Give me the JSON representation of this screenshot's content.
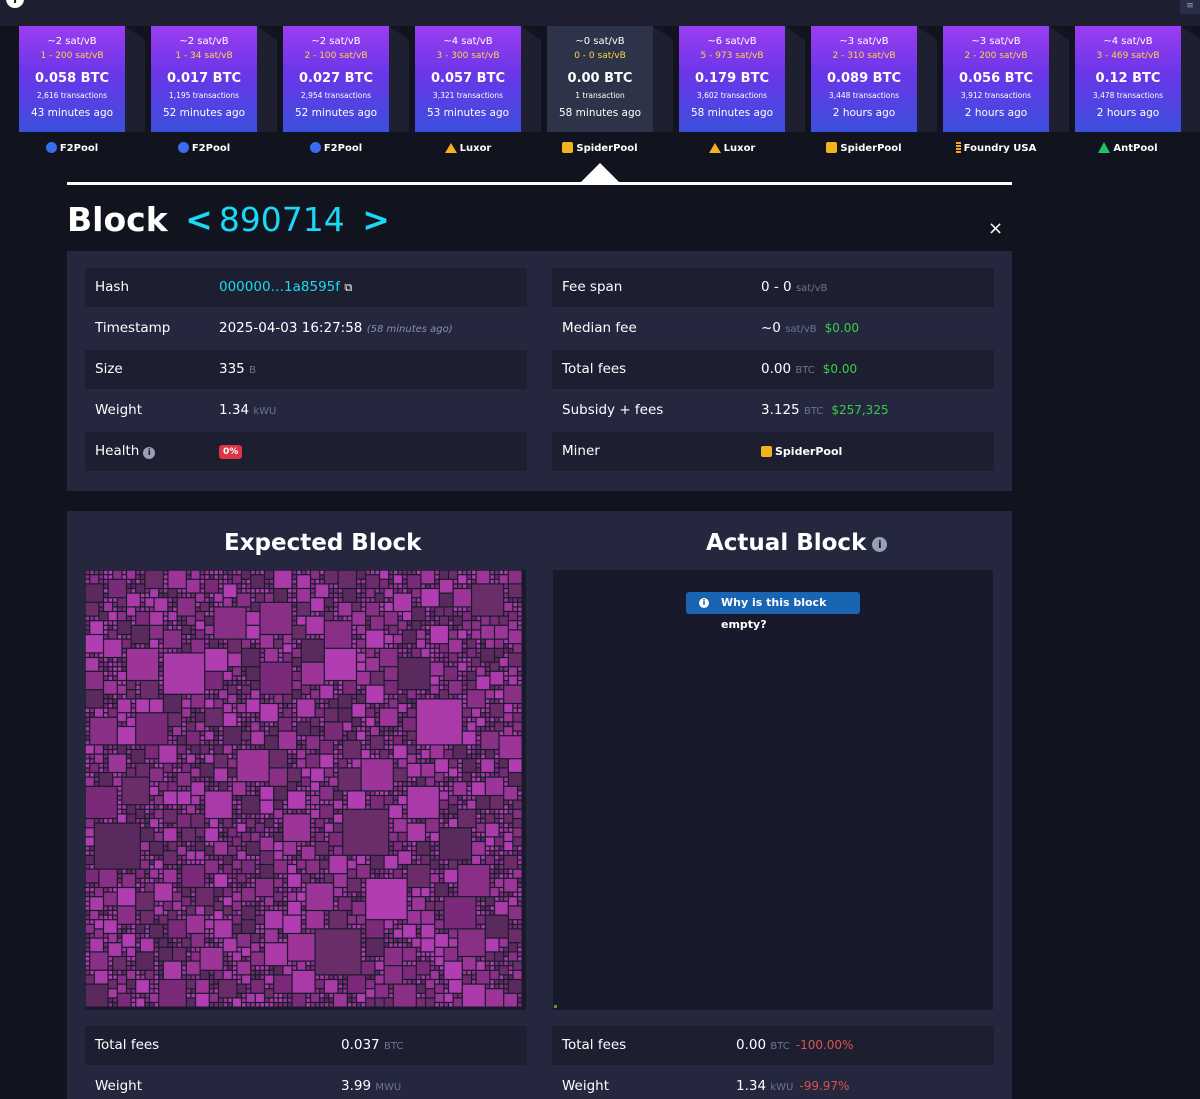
{
  "colors": {
    "accent": "#1bd8f4",
    "fee_green": "#3bcc49",
    "health_red": "#dc3545",
    "tx_magenta": "#a93aa8"
  },
  "blocks": [
    {
      "fee": "~2 sat/vB",
      "range": "1 - 200 sat/vB",
      "btc": "0.058 BTC",
      "tx": "2,616 transactions",
      "time": "43 minutes ago",
      "pool": "F2Pool",
      "pool_icon": "f2pool-icon"
    },
    {
      "fee": "~2 sat/vB",
      "range": "1 - 34 sat/vB",
      "btc": "0.017 BTC",
      "tx": "1,195 transactions",
      "time": "52 minutes ago",
      "pool": "F2Pool",
      "pool_icon": "f2pool-icon"
    },
    {
      "fee": "~2 sat/vB",
      "range": "2 - 100 sat/vB",
      "btc": "0.027 BTC",
      "tx": "2,954 transactions",
      "time": "52 minutes ago",
      "pool": "F2Pool",
      "pool_icon": "f2pool-icon"
    },
    {
      "fee": "~4 sat/vB",
      "range": "3 - 300 sat/vB",
      "btc": "0.057 BTC",
      "tx": "3,321 transactions",
      "time": "53 minutes ago",
      "pool": "Luxor",
      "pool_icon": "luxor-icon"
    },
    {
      "fee": "~0 sat/vB",
      "range": "0 - 0 sat/vB",
      "btc": "0.00 BTC",
      "tx": "1 transaction",
      "time": "58 minutes ago",
      "pool": "SpiderPool",
      "pool_icon": "spiderpool-icon",
      "selected": true
    },
    {
      "fee": "~6 sat/vB",
      "range": "5 - 973 sat/vB",
      "btc": "0.179 BTC",
      "tx": "3,602 transactions",
      "time": "58 minutes ago",
      "pool": "Luxor",
      "pool_icon": "luxor-icon"
    },
    {
      "fee": "~3 sat/vB",
      "range": "2 - 310 sat/vB",
      "btc": "0.089 BTC",
      "tx": "3,448 transactions",
      "time": "2 hours ago",
      "pool": "SpiderPool",
      "pool_icon": "spiderpool-icon"
    },
    {
      "fee": "~3 sat/vB",
      "range": "2 - 200 sat/vB",
      "btc": "0.056 BTC",
      "tx": "3,912 transactions",
      "time": "2 hours ago",
      "pool": "Foundry USA",
      "pool_icon": "foundry-icon"
    },
    {
      "fee": "~4 sat/vB",
      "range": "3 - 469 sat/vB",
      "btc": "0.12 BTC",
      "tx": "3,478 transactions",
      "time": "2 hours ago",
      "pool": "AntPool",
      "pool_icon": "antpool-icon"
    }
  ],
  "header": {
    "title": "Block",
    "height": "890714",
    "prev": "<",
    "next": ">",
    "close": "×"
  },
  "details": {
    "hash_label": "Hash",
    "hash_value": "000000…1a8595f",
    "timestamp_label": "Timestamp",
    "timestamp_value": "2025-04-03 16:27:58",
    "timestamp_ago": "(58 minutes ago)",
    "size_label": "Size",
    "size_value": "335",
    "size_unit": "B",
    "weight_label": "Weight",
    "weight_value": "1.34",
    "weight_unit": "kWU",
    "health_label": "Health",
    "health_value": "0%",
    "feespan_label": "Fee span",
    "feespan_value": "0 - 0",
    "feespan_unit": "sat/vB",
    "median_label": "Median fee",
    "median_value": "~0",
    "median_unit": "sat/vB",
    "median_usd": "$0.00",
    "totalfees_label": "Total fees",
    "totalfees_value": "0.00",
    "totalfees_unit": "BTC",
    "totalfees_usd": "$0.00",
    "subsidy_label": "Subsidy + fees",
    "subsidy_value": "3.125",
    "subsidy_unit": "BTC",
    "subsidy_usd": "$257,325",
    "miner_label": "Miner",
    "miner_value": "SpiderPool"
  },
  "comparison": {
    "expected_title": "Expected Block",
    "actual_title": "Actual Block",
    "why_empty": "Why is this block empty?",
    "expected_fees_label": "Total fees",
    "expected_fees_value": "0.037",
    "expected_fees_unit": "BTC",
    "expected_weight_label": "Weight",
    "expected_weight_value": "3.99",
    "expected_weight_unit": "MWU",
    "actual_fees_label": "Total fees",
    "actual_fees_value": "0.00",
    "actual_fees_unit": "BTC",
    "actual_fees_delta": "-100.00%",
    "actual_weight_label": "Weight",
    "actual_weight_value": "1.34",
    "actual_weight_unit": "kWU",
    "actual_weight_delta": "-99.97%"
  }
}
